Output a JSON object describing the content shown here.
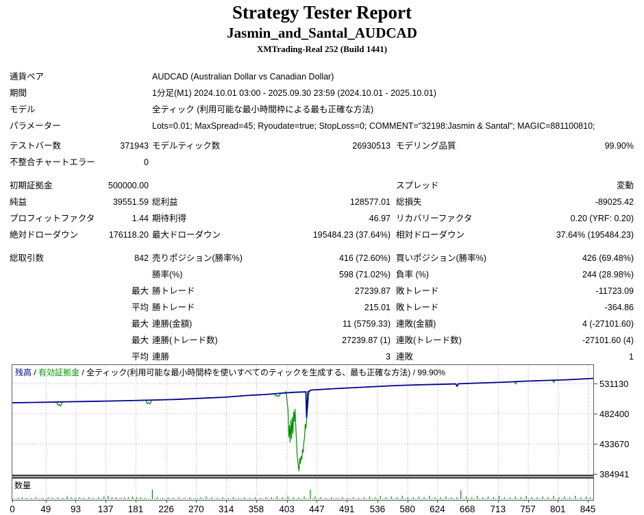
{
  "header": {
    "title": "Strategy Tester Report",
    "subtitle": "Jasmin_and_Santal_AUDCAD",
    "server": "XMTrading-Real 252 (Build 1441)"
  },
  "report": {
    "rows": [
      {
        "c1": "通貨ペア",
        "v": "AUDCAD (Australian Dollar vs Canadian Dollar)"
      },
      {
        "c1": "期間",
        "v": "1分足(M1) 2024.10.01 03:00 - 2025.09.30 23:59 (2024.10.01 - 2025.10.01)"
      },
      {
        "c1": "モデル",
        "v": "全ティック (利用可能な最小時間枠による最も正確な方法)"
      },
      {
        "c1": "パラメーター",
        "v": "Lots=0.01; MaxSpread=45; Ryoudate=true; StopLoss=0; COMMENT=\"32198:Jasmin & Santal\"; MAGIC=881100810;"
      },
      {
        "c1": "テストバー数",
        "v1": "371943",
        "c2": "モデルティック数",
        "v2": "26930513",
        "c3": "モデリング品質",
        "v3": "99.90%"
      },
      {
        "c1": "不整合チャートエラー",
        "v1": "0"
      },
      {
        "c1": "初期証拠金",
        "v1": "500000.00",
        "c3": "スプレッド",
        "v3": "変動"
      },
      {
        "c1": "純益",
        "v1": "39551.59",
        "c2": "総利益",
        "v2": "128577.01",
        "c3": "総損失",
        "v3": "-89025.42"
      },
      {
        "c1": "プロフィットファクタ",
        "v1": "1.44",
        "c2": "期待利得",
        "v2": "46.97",
        "c3": "リカバリーファクタ",
        "v3": "0.20 (YRF: 0.20)"
      },
      {
        "c1": "絶対ドローダウン",
        "v1": "176118.20",
        "c2": "最大ドローダウン",
        "v2": "195484.23 (37.64%)",
        "c3": "相対ドローダウン",
        "v3": "37.64% (195484.23)"
      },
      {
        "c1": "総取引数",
        "v1": "842",
        "c2": "売りポジション(勝率%)",
        "v2": "416 (72.60%)",
        "c3": "買いポジション(勝率%)",
        "v3": "426 (69.48%)"
      },
      {
        "c2": "勝率(%)",
        "v2": "598 (71.02%)",
        "c3": "負率 (%)",
        "v3": "244 (28.98%)"
      },
      {
        "v1": "最大",
        "c2": "勝トレード",
        "v2": "27239.87",
        "c3": "敗トレード",
        "v3": "-11723.09"
      },
      {
        "v1": "平均",
        "c2": "勝トレード",
        "v2": "215.01",
        "c3": "敗トレード",
        "v3": "-364.86"
      },
      {
        "v1": "最大",
        "c2": "連勝(金額)",
        "v2": "11 (5759.33)",
        "c3": "連敗(金額)",
        "v3": "4 (-27101.60)"
      },
      {
        "v1": "最大",
        "c2": "連勝(トレード数)",
        "v2": "27239.87 (1)",
        "c3": "連敗(トレード数)",
        "v3": "-27101.60 (4)"
      },
      {
        "v1": "平均",
        "c2": "連勝",
        "v2": "3",
        "c3": "連敗",
        "v3": "1"
      }
    ]
  },
  "chart_data": {
    "type": "line",
    "title": "",
    "xlabel": "取引数",
    "ylabel": "口座残高",
    "grid": true,
    "legend_position": "top-left",
    "legend": {
      "balance_label": "残高",
      "equity_label": "有効証拠金",
      "separator": " / ",
      "model_text": "全ティック(利用可能な最小時間枠を使いすべてのティックを生成する、最も正確な方法)",
      "quality": "99.90%",
      "balance_color": "#000090",
      "equity_color": "#00A000"
    },
    "x_ticks": [
      0,
      49,
      93,
      137,
      181,
      226,
      270,
      314,
      358,
      403,
      447,
      491,
      536,
      580,
      624,
      668,
      713,
      757,
      801,
      845
    ],
    "y_ticks": [
      531130,
      482400,
      433670,
      384941
    ],
    "x_max": 853,
    "initial_deposit": 500000,
    "series": [
      {
        "name": "残高",
        "color": "#000090",
        "points": [
          [
            0,
            500000
          ],
          [
            30,
            500600
          ],
          [
            60,
            501000
          ],
          [
            82,
            501700
          ],
          [
            111,
            502100
          ],
          [
            141,
            502800
          ],
          [
            171,
            503450
          ],
          [
            213,
            504550
          ],
          [
            241,
            505450
          ],
          [
            284,
            507650
          ],
          [
            312,
            509000
          ],
          [
            344,
            511750
          ],
          [
            372,
            513400
          ],
          [
            390,
            515050
          ],
          [
            414,
            516950
          ],
          [
            431,
            517650
          ],
          [
            432,
            476000
          ],
          [
            434,
            517900
          ],
          [
            439,
            520600
          ],
          [
            448,
            521150
          ],
          [
            473,
            522800
          ],
          [
            503,
            524500
          ],
          [
            533,
            526150
          ],
          [
            563,
            527800
          ],
          [
            594,
            528900
          ],
          [
            624,
            529700
          ],
          [
            651,
            530450
          ],
          [
            653,
            526800
          ],
          [
            655,
            530700
          ],
          [
            694,
            532250
          ],
          [
            724,
            533350
          ],
          [
            755,
            535000
          ],
          [
            785,
            536100
          ],
          [
            815,
            537200
          ],
          [
            853,
            539450
          ]
        ]
      },
      {
        "name": "有効証拠金",
        "color": "#009000",
        "points": [
          [
            0,
            500000
          ],
          [
            30,
            500600
          ],
          [
            60,
            501000
          ],
          [
            65,
            501150
          ],
          [
            67,
            495800
          ],
          [
            69,
            497200
          ],
          [
            71,
            494600
          ],
          [
            73,
            501300
          ],
          [
            82,
            501700
          ],
          [
            111,
            502100
          ],
          [
            141,
            502800
          ],
          [
            171,
            503450
          ],
          [
            196,
            504300
          ],
          [
            198,
            498500
          ],
          [
            200,
            500300
          ],
          [
            202,
            497900
          ],
          [
            205,
            504500
          ],
          [
            213,
            504550
          ],
          [
            241,
            505450
          ],
          [
            284,
            507650
          ],
          [
            312,
            509000
          ],
          [
            344,
            511750
          ],
          [
            372,
            513400
          ],
          [
            385,
            514300
          ],
          [
            387,
            510500
          ],
          [
            389,
            512200
          ],
          [
            391,
            509900
          ],
          [
            394,
            515300
          ],
          [
            400,
            515850
          ],
          [
            402,
            517800
          ],
          [
            405,
            485700
          ],
          [
            406,
            443700
          ],
          [
            407,
            463600
          ],
          [
            408,
            435900
          ],
          [
            409,
            472400
          ],
          [
            410,
            441400
          ],
          [
            411,
            476900
          ],
          [
            412,
            450300
          ],
          [
            413,
            485700
          ],
          [
            414,
            469100
          ],
          [
            415,
            490200
          ],
          [
            417,
            441400
          ],
          [
            418,
            419300
          ],
          [
            419,
            406000
          ],
          [
            420,
            397100
          ],
          [
            421,
            389400
          ],
          [
            422,
            410400
          ],
          [
            423,
            401600
          ],
          [
            424,
            413700
          ],
          [
            425,
            408200
          ],
          [
            426,
            424800
          ],
          [
            427,
            419300
          ],
          [
            428,
            435900
          ],
          [
            429,
            443700
          ],
          [
            430,
            465800
          ],
          [
            431,
            458000
          ],
          [
            432,
            472400
          ],
          [
            433,
            485700
          ],
          [
            434,
            496800
          ],
          [
            435,
            513400
          ],
          [
            437,
            520300
          ],
          [
            439,
            520600
          ],
          [
            448,
            521150
          ],
          [
            473,
            522800
          ],
          [
            503,
            524500
          ],
          [
            533,
            526150
          ],
          [
            563,
            527800
          ],
          [
            594,
            528900
          ],
          [
            624,
            529700
          ],
          [
            651,
            530450
          ],
          [
            653,
            526800
          ],
          [
            655,
            530700
          ],
          [
            694,
            532250
          ],
          [
            724,
            533350
          ],
          [
            737,
            534100
          ],
          [
            739,
            530600
          ],
          [
            741,
            534400
          ],
          [
            755,
            535000
          ],
          [
            785,
            536100
          ],
          [
            793,
            536300
          ],
          [
            795,
            533100
          ],
          [
            797,
            536700
          ],
          [
            815,
            537200
          ],
          [
            853,
            539450
          ]
        ]
      }
    ],
    "volume": {
      "label": "数量",
      "color": "#008f00",
      "bars": [
        [
          8,
          1
        ],
        [
          14,
          2
        ],
        [
          20,
          1
        ],
        [
          27,
          1
        ],
        [
          34,
          2
        ],
        [
          44,
          1
        ],
        [
          52,
          2
        ],
        [
          58,
          1
        ],
        [
          66,
          2
        ],
        [
          74,
          1
        ],
        [
          80,
          3
        ],
        [
          86,
          2
        ],
        [
          92,
          1
        ],
        [
          98,
          2
        ],
        [
          104,
          1
        ],
        [
          112,
          2
        ],
        [
          118,
          1
        ],
        [
          126,
          2
        ],
        [
          134,
          3
        ],
        [
          140,
          4
        ],
        [
          146,
          2
        ],
        [
          152,
          2
        ],
        [
          158,
          1
        ],
        [
          164,
          2
        ],
        [
          170,
          2
        ],
        [
          176,
          3
        ],
        [
          182,
          2
        ],
        [
          188,
          2
        ],
        [
          194,
          1
        ],
        [
          205,
          13
        ],
        [
          212,
          2
        ],
        [
          220,
          1
        ],
        [
          228,
          2
        ],
        [
          236,
          1
        ],
        [
          244,
          2
        ],
        [
          252,
          1
        ],
        [
          260,
          2
        ],
        [
          268,
          1
        ],
        [
          276,
          2
        ],
        [
          284,
          3
        ],
        [
          292,
          2
        ],
        [
          300,
          1
        ],
        [
          308,
          2
        ],
        [
          316,
          1
        ],
        [
          324,
          2
        ],
        [
          332,
          1
        ],
        [
          340,
          2
        ],
        [
          348,
          1
        ],
        [
          356,
          2
        ],
        [
          364,
          1
        ],
        [
          372,
          2
        ],
        [
          380,
          2
        ],
        [
          388,
          3
        ],
        [
          396,
          2
        ],
        [
          404,
          3
        ],
        [
          412,
          2
        ],
        [
          420,
          2
        ],
        [
          428,
          3
        ],
        [
          437,
          13
        ],
        [
          444,
          3
        ],
        [
          452,
          2
        ],
        [
          460,
          1
        ],
        [
          468,
          2
        ],
        [
          476,
          1
        ],
        [
          484,
          2
        ],
        [
          492,
          1
        ],
        [
          500,
          2
        ],
        [
          508,
          1
        ],
        [
          516,
          2
        ],
        [
          524,
          3
        ],
        [
          532,
          2
        ],
        [
          540,
          4
        ],
        [
          548,
          2
        ],
        [
          556,
          3
        ],
        [
          564,
          2
        ],
        [
          572,
          4
        ],
        [
          580,
          2
        ],
        [
          588,
          2
        ],
        [
          596,
          3
        ],
        [
          604,
          2
        ],
        [
          612,
          4
        ],
        [
          620,
          2
        ],
        [
          628,
          2
        ],
        [
          636,
          3
        ],
        [
          644,
          2
        ],
        [
          652,
          2
        ],
        [
          658,
          12
        ],
        [
          666,
          3
        ],
        [
          674,
          2
        ],
        [
          682,
          4
        ],
        [
          690,
          2
        ],
        [
          698,
          3
        ],
        [
          706,
          2
        ],
        [
          714,
          4
        ],
        [
          722,
          2
        ],
        [
          730,
          2
        ],
        [
          738,
          3
        ],
        [
          746,
          2
        ],
        [
          754,
          4
        ],
        [
          762,
          2
        ],
        [
          770,
          2
        ],
        [
          778,
          3
        ],
        [
          786,
          2
        ],
        [
          794,
          4
        ],
        [
          802,
          2
        ],
        [
          810,
          3
        ],
        [
          818,
          2
        ],
        [
          826,
          4
        ],
        [
          834,
          2
        ],
        [
          842,
          3
        ],
        [
          848,
          2
        ]
      ]
    }
  }
}
